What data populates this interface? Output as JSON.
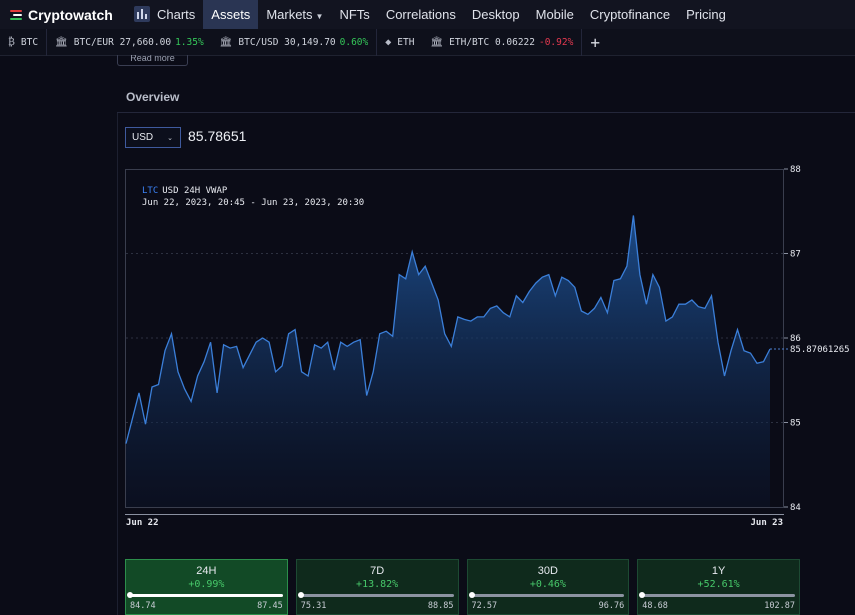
{
  "brand": {
    "name": "Cryptowatch",
    "logo_colors": [
      "#e23b3b",
      "#ffffff",
      "#36c15a"
    ]
  },
  "nav": {
    "items": [
      {
        "label": "Charts",
        "icon": "bar-chart-icon",
        "active": false
      },
      {
        "label": "Assets",
        "active": true
      },
      {
        "label": "Markets",
        "dropdown": true
      },
      {
        "label": "NFTs"
      },
      {
        "label": "Correlations"
      },
      {
        "label": "Desktop"
      },
      {
        "label": "Mobile"
      },
      {
        "label": "Cryptofinance"
      },
      {
        "label": "Pricing"
      }
    ]
  },
  "ticker": {
    "items": [
      {
        "icon": "bitcoin-icon",
        "pair": "BTC",
        "price": "",
        "change": ""
      },
      {
        "icon": "bank-icon",
        "pair": "BTC/EUR",
        "price": "27,660.00",
        "change": "1.35%",
        "dir": "pos"
      },
      {
        "icon": "bank-icon",
        "pair": "BTC/USD",
        "price": "30,149.70",
        "change": "0.60%",
        "dir": "pos"
      },
      {
        "icon": "ethereum-icon",
        "pair": "ETH",
        "price": "",
        "change": ""
      },
      {
        "icon": "bank-icon",
        "pair": "ETH/BTC",
        "price": "0.06222",
        "change": "-0.92%",
        "dir": "neg"
      }
    ],
    "add_label": "+"
  },
  "readmore_label": "Read more",
  "overview": {
    "title": "Overview",
    "currency": "USD",
    "price": "85.78651"
  },
  "chart_data": {
    "type": "area",
    "title_asset": "LTC",
    "title_rest": "USD 24H VWAP",
    "subtitle": "Jun 22, 2023, 20:45 - Jun 23, 2023, 20:30",
    "x_tick_labels": [
      "Jun 22",
      "Jun 23"
    ],
    "y_ticks": [
      84,
      85,
      86,
      87,
      88
    ],
    "ylim": [
      84,
      88
    ],
    "last_value_label": "85.87061265",
    "last_value": 85.87,
    "y": [
      84.75,
      85.05,
      85.35,
      84.98,
      85.42,
      85.45,
      85.85,
      86.05,
      85.6,
      85.4,
      85.25,
      85.55,
      85.72,
      85.95,
      85.35,
      85.92,
      85.88,
      85.9,
      85.65,
      85.8,
      85.95,
      86.0,
      85.95,
      85.6,
      85.67,
      86.05,
      86.1,
      85.6,
      85.55,
      85.92,
      85.88,
      85.95,
      85.62,
      85.95,
      85.9,
      85.95,
      85.98,
      85.32,
      85.6,
      86.05,
      86.08,
      86.02,
      86.75,
      86.7,
      87.02,
      86.75,
      86.85,
      86.65,
      86.45,
      86.05,
      85.9,
      86.25,
      86.22,
      86.2,
      86.25,
      86.25,
      86.35,
      86.38,
      86.3,
      86.25,
      86.5,
      86.42,
      86.55,
      86.65,
      86.72,
      86.75,
      86.5,
      86.72,
      86.68,
      86.6,
      86.32,
      86.28,
      86.35,
      86.48,
      86.3,
      86.68,
      86.7,
      86.85,
      87.45,
      86.75,
      86.4,
      86.75,
      86.6,
      86.2,
      86.25,
      86.4,
      86.4,
      86.45,
      86.37,
      86.35,
      86.5,
      85.95,
      85.55,
      85.85,
      86.1,
      85.85,
      85.82,
      85.7,
      85.72,
      85.87
    ]
  },
  "periods": [
    {
      "label": "24H",
      "change": "+0.99%",
      "low": "84.74",
      "high": "87.45",
      "position": 0.0,
      "active": true
    },
    {
      "label": "7D",
      "change": "+13.82%",
      "low": "75.31",
      "high": "88.85",
      "position": 0.0,
      "active": false
    },
    {
      "label": "30D",
      "change": "+0.46%",
      "low": "72.57",
      "high": "96.76",
      "position": 0.0,
      "active": false
    },
    {
      "label": "1Y",
      "change": "+52.61%",
      "low": "48.68",
      "high": "102.87",
      "position": 0.0,
      "active": false
    }
  ]
}
